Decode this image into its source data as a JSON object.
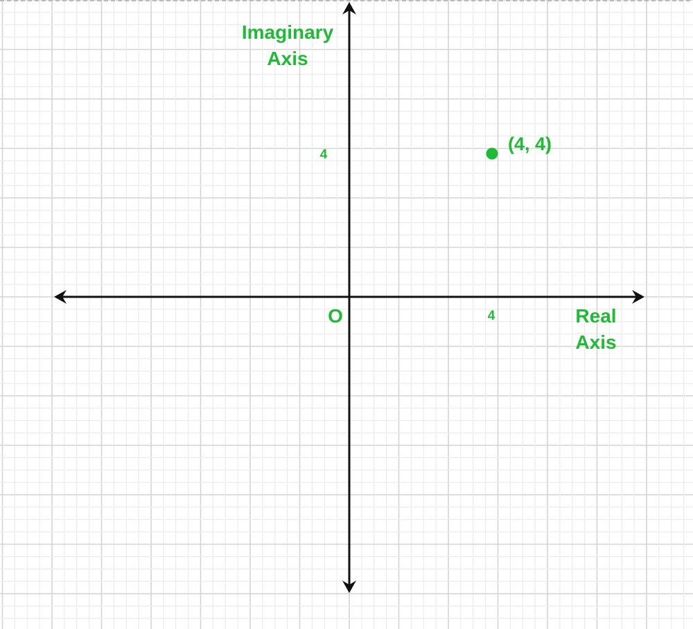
{
  "colors": {
    "accent": "#1fba36",
    "axis": "#111111",
    "grid_major": "#d4d4d4",
    "grid_minor": "#ececec"
  },
  "axes": {
    "imaginary_label_line1": "Imaginary",
    "imaginary_label_line2": "Axis",
    "real_label_line1": "Real",
    "real_label_line2": "Axis",
    "origin_label": "O",
    "x_tick": "4",
    "y_tick": "4"
  },
  "point": {
    "x": 4,
    "y": 4,
    "label": "(4, 4)"
  }
}
